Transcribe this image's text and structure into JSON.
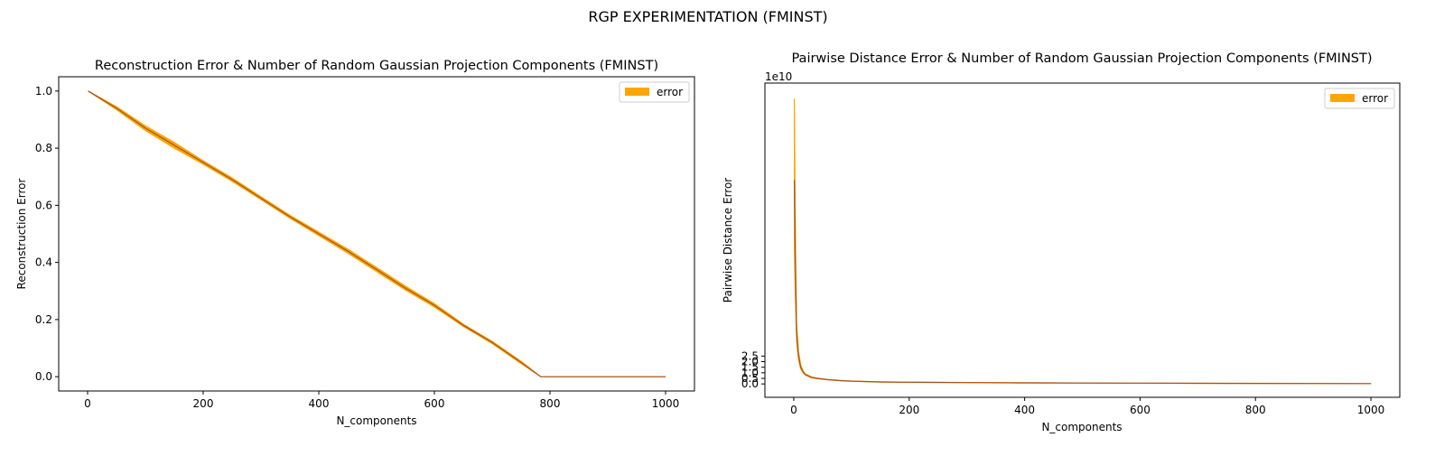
{
  "figure": {
    "suptitle": "RGP EXPERIMENTATION (FMINST)"
  },
  "colors": {
    "band": "#ffa500",
    "mean_line": "#a0522d",
    "legend_patch": "#ffa500",
    "axes": "#000000"
  },
  "chart_data": [
    {
      "type": "line",
      "title": "Reconstruction Error & Number of Random Gaussian Projection Components (FMINST)",
      "xlabel": "N_components",
      "ylabel": "Reconstruction Error",
      "xlim": [
        -50,
        1050
      ],
      "ylim": [
        -0.05,
        1.05
      ],
      "xticks": [
        0,
        200,
        400,
        600,
        800,
        1000
      ],
      "yticks": [
        0.0,
        0.2,
        0.4,
        0.6,
        0.8,
        1.0
      ],
      "ytick_labels": [
        "0.0",
        "0.2",
        "0.4",
        "0.6",
        "0.8",
        "1.0"
      ],
      "offset_label": "",
      "legend": {
        "entries": [
          "error"
        ],
        "loc": "upper right"
      },
      "series": [
        {
          "name": "error",
          "x": [
            1,
            50,
            100,
            150,
            200,
            250,
            300,
            350,
            400,
            450,
            500,
            550,
            600,
            650,
            700,
            750,
            784,
            800,
            850,
            900,
            950,
            1000
          ],
          "y": [
            1.0,
            0.94,
            0.87,
            0.81,
            0.75,
            0.69,
            0.625,
            0.56,
            0.5,
            0.44,
            0.375,
            0.31,
            0.25,
            0.18,
            0.12,
            0.05,
            0.0,
            0.0,
            0.0,
            0.0,
            0.0,
            0.0
          ],
          "lower": [
            1.0,
            0.935,
            0.862,
            0.8,
            0.744,
            0.684,
            0.62,
            0.555,
            0.494,
            0.433,
            0.368,
            0.303,
            0.244,
            0.176,
            0.116,
            0.046,
            0.0,
            0.0,
            0.0,
            0.0,
            0.0,
            0.0
          ],
          "upper": [
            1.0,
            0.945,
            0.878,
            0.82,
            0.756,
            0.696,
            0.63,
            0.565,
            0.506,
            0.447,
            0.382,
            0.317,
            0.256,
            0.184,
            0.124,
            0.054,
            0.0,
            0.0,
            0.0,
            0.0,
            0.0,
            0.0
          ]
        }
      ]
    },
    {
      "type": "line",
      "title": "Pairwise Distance Error & Number of Random Gaussian Projection Components (FMINST)",
      "xlabel": "N_components",
      "ylabel": "Pairwise Distance Error",
      "xlim": [
        -50,
        1050
      ],
      "ylim": [
        -1.2,
        27.0
      ],
      "xticks": [
        0,
        200,
        400,
        600,
        800,
        1000
      ],
      "yticks": [
        0.0,
        0.5,
        1.0,
        1.5,
        2.0,
        2.5
      ],
      "ytick_labels": [
        "0.0",
        "0.5",
        "1.0",
        "1.5",
        "2.0",
        "2.5"
      ],
      "offset_label": "1e10",
      "legend": {
        "entries": [
          "error"
        ],
        "loc": "upper right"
      },
      "series": [
        {
          "name": "error",
          "x": [
            1,
            3,
            5,
            8,
            12,
            16,
            20,
            30,
            40,
            60,
            80,
            100,
            150,
            200,
            300,
            400,
            500,
            600,
            700,
            800,
            900,
            1000
          ],
          "y": [
            18.3,
            10.0,
            4.6,
            2.6,
            1.5,
            1.1,
            0.85,
            0.6,
            0.5,
            0.38,
            0.3,
            0.25,
            0.18,
            0.15,
            0.12,
            0.1,
            0.08,
            0.07,
            0.06,
            0.05,
            0.04,
            0.03
          ],
          "lower": [
            12.0,
            7.0,
            3.8,
            2.2,
            1.35,
            1.0,
            0.8,
            0.56,
            0.47,
            0.36,
            0.28,
            0.24,
            0.17,
            0.14,
            0.11,
            0.09,
            0.075,
            0.065,
            0.055,
            0.045,
            0.035,
            0.025
          ],
          "upper": [
            25.6,
            12.0,
            5.4,
            3.0,
            1.7,
            1.2,
            0.9,
            0.65,
            0.53,
            0.4,
            0.32,
            0.26,
            0.19,
            0.16,
            0.13,
            0.11,
            0.085,
            0.075,
            0.065,
            0.055,
            0.045,
            0.035
          ]
        }
      ]
    }
  ]
}
